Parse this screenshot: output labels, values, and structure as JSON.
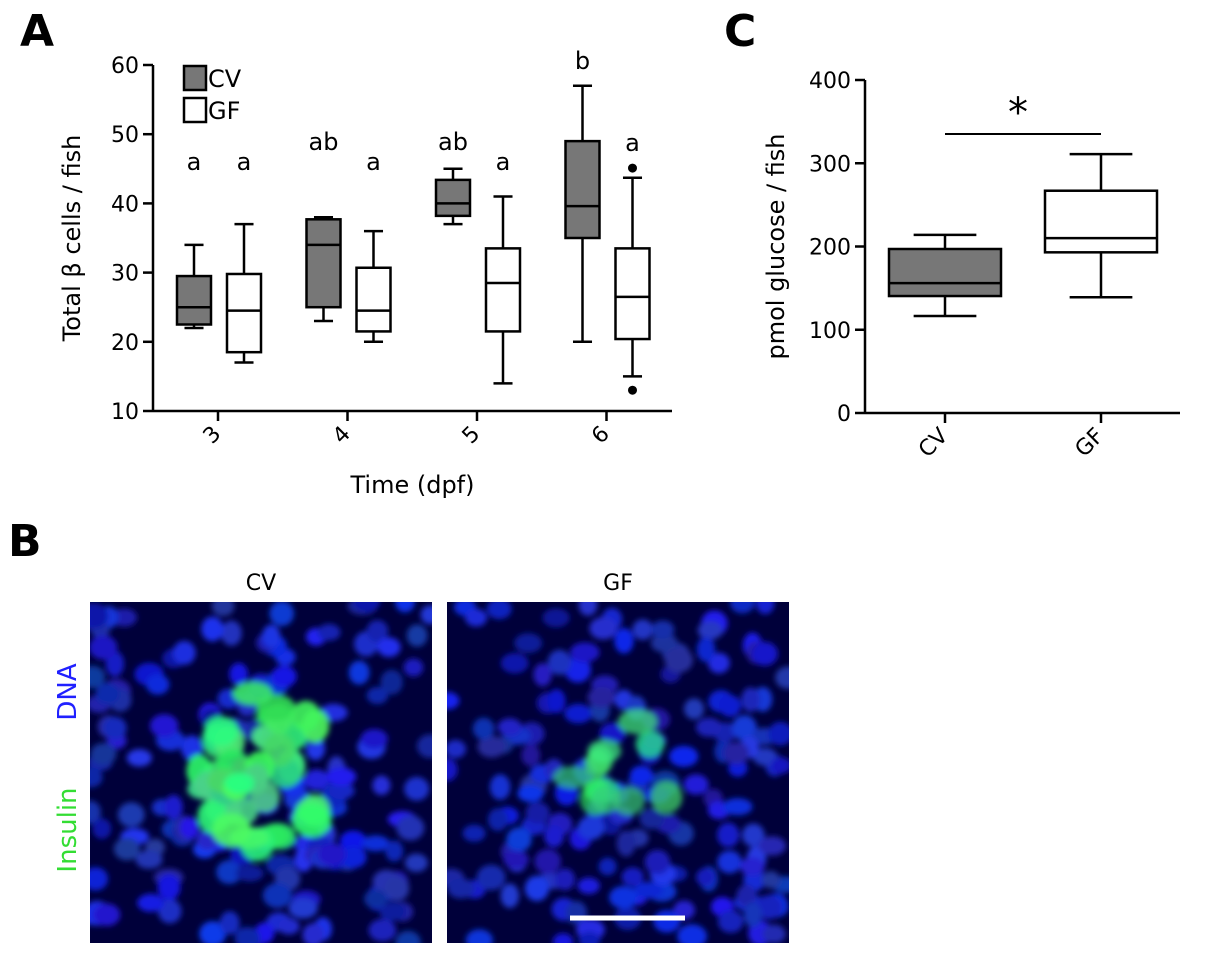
{
  "chart_data": [
    {
      "type": "box",
      "panel_label": "A",
      "xlabel": "Time (dpf)",
      "ylabel": "Total β cells / fish",
      "categories": [
        "3",
        "4",
        "5",
        "6"
      ],
      "ylim": [
        10,
        60
      ],
      "yticks": [
        10,
        20,
        30,
        40,
        50,
        60
      ],
      "legend": "upper-left",
      "series": [
        {
          "name": "CV",
          "color": "#777777",
          "boxes": [
            {
              "min": 22,
              "q1": 22.5,
              "median": 25,
              "q3": 29.5,
              "max": 34,
              "outliers": [],
              "letter": "a"
            },
            {
              "min": 23,
              "q1": 25,
              "median": 34,
              "q3": 37.7,
              "max": 38,
              "outliers": [],
              "letter": "ab"
            },
            {
              "min": 37,
              "q1": 38.2,
              "median": 40,
              "q3": 43.4,
              "max": 45,
              "outliers": [],
              "letter": "ab"
            },
            {
              "min": 20,
              "q1": 35,
              "median": 39.6,
              "q3": 49,
              "max": 57,
              "outliers": [],
              "letter": "b"
            }
          ]
        },
        {
          "name": "GF",
          "color": "#ffffff",
          "boxes": [
            {
              "min": 17,
              "q1": 18.5,
              "median": 24.5,
              "q3": 29.8,
              "max": 37,
              "outliers": [],
              "letter": "a"
            },
            {
              "min": 20,
              "q1": 21.5,
              "median": 24.5,
              "q3": 30.7,
              "max": 36,
              "outliers": [],
              "letter": "a"
            },
            {
              "min": 14,
              "q1": 21.5,
              "median": 28.5,
              "q3": 33.5,
              "max": 41,
              "outliers": [],
              "letter": "a"
            },
            {
              "min": 15,
              "q1": 20.4,
              "median": 26.5,
              "q3": 33.5,
              "max": 43.7,
              "outliers": [
                45.1,
                13
              ],
              "letter": "a"
            }
          ]
        }
      ]
    },
    {
      "type": "box",
      "panel_label": "C",
      "ylabel": "pmol glucose / fish",
      "categories": [
        "CV",
        "GF"
      ],
      "ylim": [
        0,
        400
      ],
      "yticks": [
        0,
        100,
        200,
        300,
        400
      ],
      "annotation": "*",
      "series": [
        {
          "colors": [
            "#777777",
            "#ffffff"
          ],
          "boxes": [
            {
              "min": 116.5,
              "q1": 140.5,
              "median": 156,
              "q3": 197,
              "max": 214,
              "outliers": []
            },
            {
              "min": 139,
              "q1": 193,
              "median": 210,
              "q3": 267,
              "max": 311,
              "outliers": []
            }
          ]
        }
      ]
    }
  ],
  "panel_b": {
    "label": "B",
    "images": [
      {
        "title": "CV"
      },
      {
        "title": "GF"
      }
    ],
    "channels": [
      "DNA",
      "Insulin"
    ]
  }
}
